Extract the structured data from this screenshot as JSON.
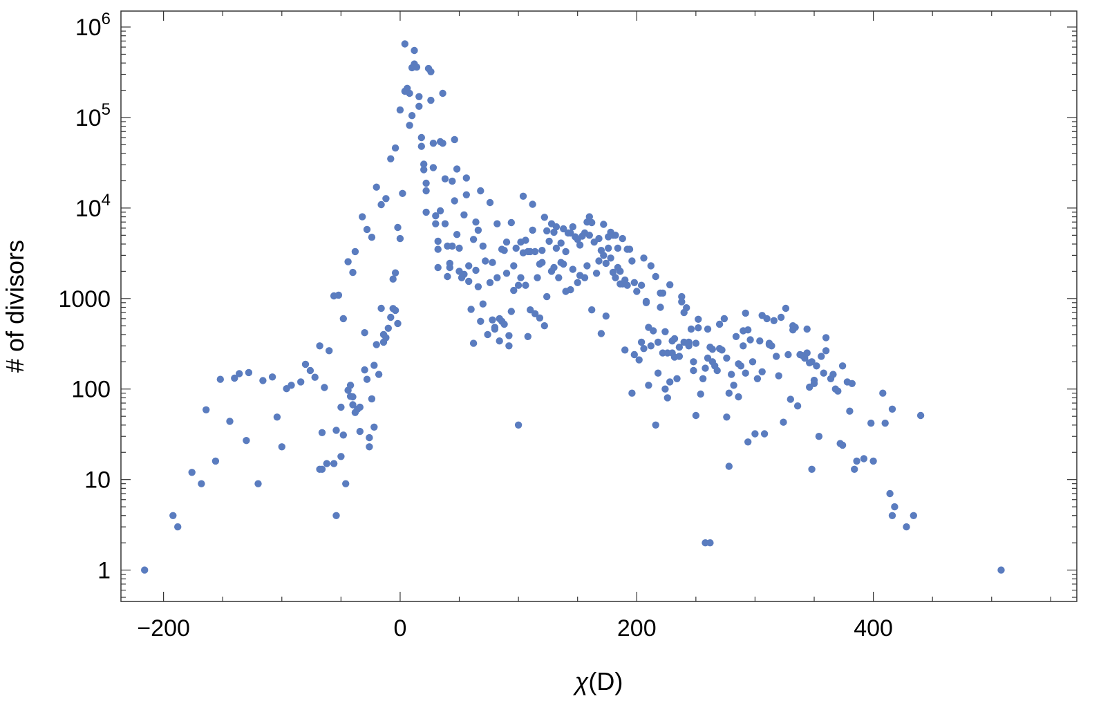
{
  "chart_data": {
    "type": "scatter",
    "xlabel_symbol": "χ",
    "xlabel_rest": "(D)",
    "ylabel": "# of divisors",
    "y_scale": "log",
    "xlim": [
      -236,
      572
    ],
    "ylim": [
      0.45,
      1500000
    ],
    "x_ticks": [
      -200,
      0,
      200,
      400
    ],
    "x_tick_labels": [
      "−200",
      "0",
      "200",
      "400"
    ],
    "y_ticks": [
      1,
      10,
      100,
      1000,
      10000,
      100000,
      1000000
    ],
    "y_tick_labels": [
      {
        "base": "1",
        "exp": ""
      },
      {
        "base": "10",
        "exp": ""
      },
      {
        "base": "100",
        "exp": ""
      },
      {
        "base": "1000",
        "exp": ""
      },
      {
        "base": "10",
        "exp": "4"
      },
      {
        "base": "10",
        "exp": "5"
      },
      {
        "base": "10",
        "exp": "6"
      }
    ],
    "marker_color": "#5a7cbf",
    "grid": false,
    "points": [
      [
        -216,
        1
      ],
      [
        -192,
        4
      ],
      [
        -188,
        3
      ],
      [
        -176,
        12
      ],
      [
        -168,
        9
      ],
      [
        -164,
        59
      ],
      [
        -156,
        16
      ],
      [
        -152,
        128
      ],
      [
        -144,
        44
      ],
      [
        -140,
        132
      ],
      [
        -136,
        148
      ],
      [
        -130,
        27
      ],
      [
        -128,
        152
      ],
      [
        -120,
        9
      ],
      [
        -116,
        124
      ],
      [
        -108,
        136
      ],
      [
        -104,
        49
      ],
      [
        -100,
        23
      ],
      [
        -96,
        101
      ],
      [
        -92,
        110
      ],
      [
        -84,
        120
      ],
      [
        -80,
        188
      ],
      [
        -76,
        160
      ],
      [
        -72,
        135
      ],
      [
        -68,
        13
      ],
      [
        -68,
        300
      ],
      [
        -66,
        13
      ],
      [
        -66,
        33
      ],
      [
        -64,
        104
      ],
      [
        -62,
        15
      ],
      [
        -60,
        265
      ],
      [
        -56,
        1070
      ],
      [
        -56,
        15
      ],
      [
        -54,
        4
      ],
      [
        -54,
        35
      ],
      [
        -52,
        1090
      ],
      [
        -50,
        63
      ],
      [
        -50,
        18
      ],
      [
        -48,
        600
      ],
      [
        -48,
        31
      ],
      [
        -46,
        9
      ],
      [
        -44,
        2550
      ],
      [
        -44,
        97
      ],
      [
        -42,
        110
      ],
      [
        -42,
        83
      ],
      [
        -40,
        1940
      ],
      [
        -40,
        82
      ],
      [
        -40,
        67
      ],
      [
        -38,
        3300
      ],
      [
        -38,
        55
      ],
      [
        -36,
        60
      ],
      [
        -34,
        63
      ],
      [
        -34,
        34
      ],
      [
        -32,
        8000
      ],
      [
        -30,
        420
      ],
      [
        -30,
        163
      ],
      [
        -28,
        5800
      ],
      [
        -28,
        128
      ],
      [
        -26,
        29
      ],
      [
        -26,
        23
      ],
      [
        -24,
        4750
      ],
      [
        -24,
        78
      ],
      [
        -22,
        38
      ],
      [
        -22,
        183
      ],
      [
        -20,
        17000
      ],
      [
        -20,
        310
      ],
      [
        -18,
        145
      ],
      [
        -16,
        10900
      ],
      [
        -16,
        780
      ],
      [
        -14,
        400
      ],
      [
        -14,
        330
      ],
      [
        -12,
        12700
      ],
      [
        -12,
        370
      ],
      [
        -10,
        470
      ],
      [
        -8,
        35000
      ],
      [
        -8,
        620
      ],
      [
        -6,
        775
      ],
      [
        -6,
        1640
      ],
      [
        -4,
        46000
      ],
      [
        -4,
        1920
      ],
      [
        -4,
        740
      ],
      [
        -2,
        6100
      ],
      [
        -2,
        530
      ],
      [
        0,
        121000
      ],
      [
        0,
        4600
      ],
      [
        2,
        14500
      ],
      [
        4,
        650000
      ],
      [
        4,
        195000
      ],
      [
        6,
        210000
      ],
      [
        8,
        185000
      ],
      [
        8,
        82000
      ],
      [
        10,
        105000
      ],
      [
        10,
        355000
      ],
      [
        12,
        550000
      ],
      [
        12,
        390000
      ],
      [
        14,
        360000
      ],
      [
        16,
        170000
      ],
      [
        16,
        133000
      ],
      [
        18,
        48000
      ],
      [
        18,
        60000
      ],
      [
        20,
        26500
      ],
      [
        20,
        30500
      ],
      [
        22,
        15500
      ],
      [
        22,
        18800
      ],
      [
        22,
        9000
      ],
      [
        24,
        348000
      ],
      [
        26,
        320000
      ],
      [
        26,
        155000
      ],
      [
        28,
        52000
      ],
      [
        28,
        28000
      ],
      [
        30,
        6700
      ],
      [
        30,
        8200
      ],
      [
        32,
        3500
      ],
      [
        32,
        4300
      ],
      [
        32,
        2200
      ],
      [
        34,
        54000
      ],
      [
        34,
        9300
      ],
      [
        36,
        185000
      ],
      [
        36,
        52000
      ],
      [
        38,
        21000
      ],
      [
        38,
        6700
      ],
      [
        40,
        3800
      ],
      [
        40,
        1750
      ],
      [
        42,
        2450
      ],
      [
        42,
        2200
      ],
      [
        44,
        19800
      ],
      [
        44,
        3800
      ],
      [
        46,
        57000
      ],
      [
        46,
        12000
      ],
      [
        48,
        27000
      ],
      [
        48,
        5100
      ],
      [
        50,
        3600
      ],
      [
        50,
        2000
      ],
      [
        52,
        1700
      ],
      [
        54,
        8400
      ],
      [
        54,
        1850
      ],
      [
        56,
        21500
      ],
      [
        56,
        14000
      ],
      [
        58,
        1550
      ],
      [
        58,
        2300
      ],
      [
        60,
        760
      ],
      [
        62,
        4500
      ],
      [
        62,
        320
      ],
      [
        64,
        7000
      ],
      [
        64,
        2050
      ],
      [
        66,
        5700
      ],
      [
        66,
        1350
      ],
      [
        68,
        15500
      ],
      [
        68,
        560
      ],
      [
        70,
        3800
      ],
      [
        70,
        870
      ],
      [
        72,
        2600
      ],
      [
        74,
        400
      ],
      [
        76,
        11500
      ],
      [
        76,
        1500
      ],
      [
        78,
        580
      ],
      [
        78,
        2500
      ],
      [
        80,
        480
      ],
      [
        80,
        460
      ],
      [
        82,
        6700
      ],
      [
        82,
        1700
      ],
      [
        84,
        600
      ],
      [
        84,
        340
      ],
      [
        86,
        3500
      ],
      [
        86,
        560
      ],
      [
        88,
        3400
      ],
      [
        88,
        520
      ],
      [
        90,
        4200
      ],
      [
        90,
        1900
      ],
      [
        92,
        300
      ],
      [
        92,
        390
      ],
      [
        94,
        6900
      ],
      [
        94,
        720
      ],
      [
        96,
        1230
      ],
      [
        96,
        2300
      ],
      [
        98,
        3600
      ],
      [
        100,
        40
      ],
      [
        100,
        1400
      ],
      [
        102,
        4200
      ],
      [
        102,
        1700
      ],
      [
        104,
        13500
      ],
      [
        104,
        3200
      ],
      [
        106,
        4400
      ],
      [
        106,
        1400
      ],
      [
        108,
        3300
      ],
      [
        108,
        380
      ],
      [
        110,
        3300
      ],
      [
        110,
        750
      ],
      [
        112,
        11000
      ],
      [
        112,
        5700
      ],
      [
        114,
        3300
      ],
      [
        114,
        680
      ],
      [
        116,
        1700
      ],
      [
        118,
        2400
      ],
      [
        118,
        610
      ],
      [
        120,
        3400
      ],
      [
        120,
        2500
      ],
      [
        122,
        7900
      ],
      [
        122,
        500
      ],
      [
        124,
        5600
      ],
      [
        124,
        1050
      ],
      [
        126,
        4300
      ],
      [
        128,
        6700
      ],
      [
        128,
        2000
      ],
      [
        130,
        5400
      ],
      [
        130,
        2200
      ],
      [
        132,
        6200
      ],
      [
        132,
        3600
      ],
      [
        134,
        1700
      ],
      [
        136,
        4100
      ],
      [
        136,
        2500
      ],
      [
        138,
        5900
      ],
      [
        138,
        2400
      ],
      [
        140,
        3300
      ],
      [
        140,
        1200
      ],
      [
        142,
        5300
      ],
      [
        144,
        5300
      ],
      [
        144,
        1250
      ],
      [
        146,
        6200
      ],
      [
        146,
        2100
      ],
      [
        148,
        4800
      ],
      [
        150,
        4500
      ],
      [
        150,
        1500
      ],
      [
        152,
        3900
      ],
      [
        152,
        1800
      ],
      [
        154,
        4900
      ],
      [
        156,
        5300
      ],
      [
        156,
        1700
      ],
      [
        158,
        7000
      ],
      [
        158,
        2300
      ],
      [
        160,
        5000
      ],
      [
        160,
        8000
      ],
      [
        162,
        750
      ],
      [
        162,
        6900
      ],
      [
        164,
        4200
      ],
      [
        166,
        1900
      ],
      [
        168,
        4600
      ],
      [
        168,
        2600
      ],
      [
        170,
        3400
      ],
      [
        170,
        410
      ],
      [
        172,
        3000
      ],
      [
        172,
        6600
      ],
      [
        174,
        2450
      ],
      [
        174,
        640
      ],
      [
        176,
        4800
      ],
      [
        176,
        3600
      ],
      [
        178,
        2800
      ],
      [
        178,
        5400
      ],
      [
        180,
        5000
      ],
      [
        180,
        1950
      ],
      [
        182,
        5000
      ],
      [
        182,
        1700
      ],
      [
        184,
        2200
      ],
      [
        184,
        3600
      ],
      [
        186,
        2000
      ],
      [
        186,
        1450
      ],
      [
        188,
        1450
      ],
      [
        188,
        4600
      ],
      [
        190,
        270
      ],
      [
        190,
        1600
      ],
      [
        192,
        3500
      ],
      [
        192,
        1400
      ],
      [
        194,
        3500
      ],
      [
        196,
        90
      ],
      [
        196,
        2600
      ],
      [
        198,
        1500
      ],
      [
        198,
        240
      ],
      [
        200,
        1200
      ],
      [
        202,
        210
      ],
      [
        204,
        330
      ],
      [
        204,
        1400
      ],
      [
        206,
        2800
      ],
      [
        206,
        280
      ],
      [
        208,
        900
      ],
      [
        208,
        930
      ],
      [
        210,
        110
      ],
      [
        210,
        480
      ],
      [
        212,
        300
      ],
      [
        212,
        2300
      ],
      [
        214,
        440
      ],
      [
        216,
        1750
      ],
      [
        216,
        40
      ],
      [
        218,
        330
      ],
      [
        218,
        150
      ],
      [
        220,
        1150
      ],
      [
        220,
        800
      ],
      [
        222,
        1150
      ],
      [
        222,
        250
      ],
      [
        224,
        430
      ],
      [
        224,
        100
      ],
      [
        226,
        80
      ],
      [
        226,
        250
      ],
      [
        228,
        1420
      ],
      [
        228,
        120
      ],
      [
        230,
        250
      ],
      [
        230,
        340
      ],
      [
        232,
        360
      ],
      [
        232,
        225
      ],
      [
        234,
        130
      ],
      [
        236,
        230
      ],
      [
        236,
        290
      ],
      [
        238,
        1050
      ],
      [
        238,
        920
      ],
      [
        240,
        700
      ],
      [
        240,
        330
      ],
      [
        242,
        790
      ],
      [
        244,
        330
      ],
      [
        244,
        300
      ],
      [
        246,
        460
      ],
      [
        248,
        160
      ],
      [
        248,
        200
      ],
      [
        250,
        51
      ],
      [
        250,
        320
      ],
      [
        252,
        475
      ],
      [
        252,
        590
      ],
      [
        254,
        88
      ],
      [
        256,
        130
      ],
      [
        258,
        2
      ],
      [
        258,
        170
      ],
      [
        260,
        460
      ],
      [
        260,
        220
      ],
      [
        262,
        290
      ],
      [
        262,
        2
      ],
      [
        264,
        275
      ],
      [
        264,
        200
      ],
      [
        266,
        180
      ],
      [
        268,
        160
      ],
      [
        270,
        520
      ],
      [
        270,
        280
      ],
      [
        272,
        270
      ],
      [
        274,
        600
      ],
      [
        276,
        49
      ],
      [
        276,
        220
      ],
      [
        278,
        14
      ],
      [
        278,
        90
      ],
      [
        280,
        145
      ],
      [
        282,
        110
      ],
      [
        284,
        380
      ],
      [
        286,
        190
      ],
      [
        286,
        82
      ],
      [
        288,
        180
      ],
      [
        290,
        440
      ],
      [
        290,
        300
      ],
      [
        292,
        690
      ],
      [
        292,
        150
      ],
      [
        294,
        26
      ],
      [
        294,
        450
      ],
      [
        296,
        350
      ],
      [
        298,
        200
      ],
      [
        300,
        32
      ],
      [
        302,
        130
      ],
      [
        304,
        340
      ],
      [
        306,
        650
      ],
      [
        306,
        155
      ],
      [
        308,
        32
      ],
      [
        310,
        600
      ],
      [
        312,
        310
      ],
      [
        312,
        320
      ],
      [
        314,
        300
      ],
      [
        316,
        570
      ],
      [
        318,
        230
      ],
      [
        320,
        140
      ],
      [
        322,
        620
      ],
      [
        324,
        43
      ],
      [
        326,
        780
      ],
      [
        328,
        240
      ],
      [
        330,
        77
      ],
      [
        332,
        450
      ],
      [
        332,
        500
      ],
      [
        334,
        480
      ],
      [
        336,
        65
      ],
      [
        338,
        240
      ],
      [
        340,
        235
      ],
      [
        342,
        220
      ],
      [
        344,
        460
      ],
      [
        344,
        250
      ],
      [
        346,
        105
      ],
      [
        346,
        195
      ],
      [
        348,
        13
      ],
      [
        348,
        200
      ],
      [
        350,
        125
      ],
      [
        350,
        115
      ],
      [
        352,
        180
      ],
      [
        354,
        30
      ],
      [
        356,
        230
      ],
      [
        358,
        150
      ],
      [
        360,
        265
      ],
      [
        360,
        370
      ],
      [
        364,
        130
      ],
      [
        366,
        145
      ],
      [
        368,
        100
      ],
      [
        370,
        95
      ],
      [
        372,
        25
      ],
      [
        374,
        24
      ],
      [
        374,
        180
      ],
      [
        378,
        120
      ],
      [
        380,
        57
      ],
      [
        382,
        115
      ],
      [
        384,
        13
      ],
      [
        386,
        16
      ],
      [
        392,
        17
      ],
      [
        398,
        42
      ],
      [
        400,
        16
      ],
      [
        408,
        90
      ],
      [
        410,
        42
      ],
      [
        414,
        7
      ],
      [
        416,
        60
      ],
      [
        416,
        4
      ],
      [
        418,
        5
      ],
      [
        428,
        3
      ],
      [
        434,
        4
      ],
      [
        440,
        51
      ],
      [
        508,
        1
      ]
    ]
  }
}
